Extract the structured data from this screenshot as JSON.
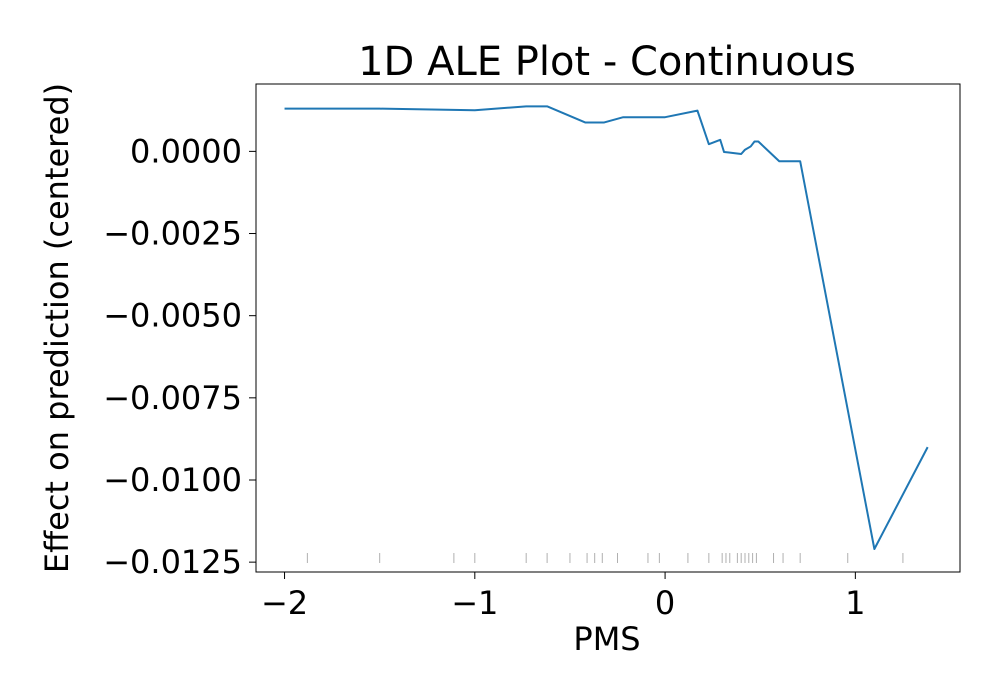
{
  "chart_data": {
    "type": "line",
    "title": "1D ALE Plot - Continuous",
    "xlabel": "PMS",
    "ylabel": "Effect on prediction (centered)",
    "xlim": [
      -2.15,
      1.55
    ],
    "ylim": [
      -0.0128,
      0.00205
    ],
    "x_ticks": [
      -2,
      -1,
      0,
      1
    ],
    "x_tick_labels": [
      "−2",
      "−1",
      "0",
      "1"
    ],
    "y_ticks": [
      0.0,
      -0.0025,
      -0.005,
      -0.0075,
      -0.01,
      -0.0125
    ],
    "y_tick_labels": [
      "0.0000",
      "−0.0025",
      "−0.0050",
      "−0.0075",
      "−0.0100",
      "−0.0125"
    ],
    "grid": false,
    "legend": null,
    "colors": {
      "line": "#1f77b4",
      "rug": "#b0b0b0",
      "axes": "#000000",
      "background": "#ffffff"
    },
    "series": [
      {
        "x": [
          -2.0,
          -1.5,
          -1.0,
          -0.73,
          -0.62,
          -0.42,
          -0.32,
          -0.22,
          0.0,
          0.17,
          0.23,
          0.29,
          0.31,
          0.33,
          0.4,
          0.42,
          0.45,
          0.47,
          0.49,
          0.6,
          0.71,
          1.1,
          1.38
        ],
        "y": [
          0.0013,
          0.0013,
          0.00125,
          0.00137,
          0.00137,
          0.00088,
          0.00088,
          0.00104,
          0.00104,
          0.00124,
          0.00022,
          0.00035,
          -2e-05,
          -3e-05,
          -8e-05,
          5e-05,
          0.00015,
          0.0003,
          0.0003,
          -0.0003,
          -0.0003,
          -0.0121,
          -0.009
        ]
      }
    ],
    "rug_x": [
      -1.88,
      -1.5,
      -1.11,
      -1.0,
      -0.73,
      -0.62,
      -0.5,
      -0.41,
      -0.37,
      -0.33,
      -0.25,
      -0.09,
      -0.03,
      0.12,
      0.23,
      0.3,
      0.32,
      0.34,
      0.38,
      0.4,
      0.42,
      0.44,
      0.46,
      0.48,
      0.57,
      0.62,
      0.71,
      0.96,
      1.25
    ]
  }
}
